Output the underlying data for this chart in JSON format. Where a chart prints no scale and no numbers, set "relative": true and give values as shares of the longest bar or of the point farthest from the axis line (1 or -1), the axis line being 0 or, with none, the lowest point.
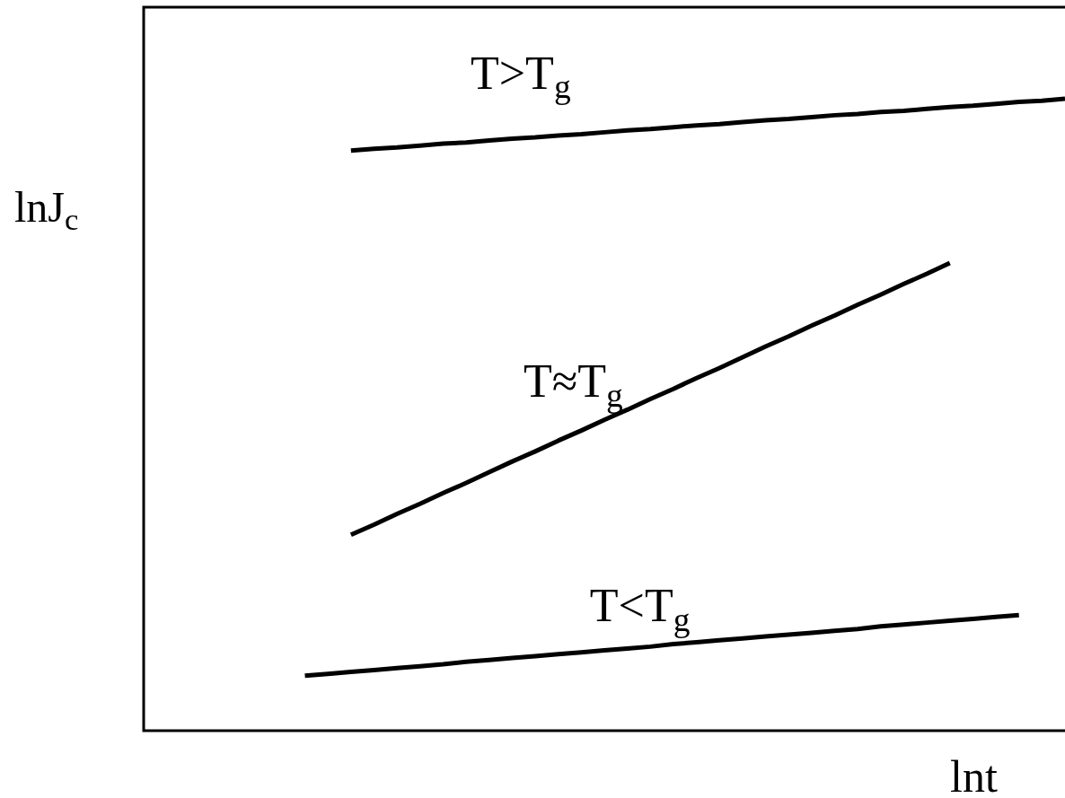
{
  "chart_data": {
    "type": "line",
    "xlabel": "lnt",
    "ylabel": "lnJ$_{c}$",
    "relative": true,
    "categories": [
      null,
      null,
      null,
      null,
      null,
      null,
      null,
      null,
      null,
      null,
      null,
      null,
      null,
      null,
      null,
      null,
      null,
      null,
      null,
      null,
      null,
      null,
      null,
      null,
      null,
      null,
      null,
      null,
      null,
      null,
      null,
      null,
      null,
      null,
      null,
      null,
      null,
      null,
      null,
      null,
      null
    ],
    "series": [
      {
        "name": "T>T$_{g}$",
        "color": "#000000",
        "values": [
          null,
          null,
          null,
          null,
          null,
          null,
          null,
          null,
          null,
          0.918,
          0.921,
          0.923,
          0.926,
          0.929,
          0.931,
          0.934,
          0.937,
          0.939,
          0.942,
          0.944,
          0.947,
          0.95,
          0.952,
          0.955,
          0.958,
          0.96,
          0.963,
          0.966,
          0.968,
          0.971,
          0.974,
          0.976,
          0.979,
          0.981,
          0.984,
          0.987,
          0.989,
          0.992,
          0.995,
          0.997,
          1
        ]
      },
      {
        "name": "T≈T$_{g}$",
        "color": "#000000",
        "values": [
          null,
          null,
          null,
          null,
          null,
          null,
          null,
          null,
          null,
          0.31,
          0.326,
          0.343,
          0.359,
          0.376,
          0.392,
          0.409,
          0.426,
          0.442,
          0.459,
          0.475,
          0.492,
          0.508,
          0.525,
          0.541,
          0.558,
          0.574,
          0.591,
          0.608,
          0.624,
          0.641,
          0.657,
          0.674,
          0.69,
          0.707,
          0.723,
          0.74,
          null,
          null,
          null,
          null,
          null
        ]
      },
      {
        "name": "T<T$_{g}$",
        "color": "#000000",
        "values": [
          null,
          null,
          null,
          null,
          null,
          null,
          null,
          0.087,
          0.09,
          0.093,
          0.096,
          0.099,
          0.102,
          0.105,
          0.109,
          0.112,
          0.115,
          0.118,
          0.121,
          0.124,
          0.127,
          0.13,
          0.133,
          0.137,
          0.14,
          0.143,
          0.146,
          0.149,
          0.152,
          0.155,
          0.158,
          0.161,
          0.165,
          0.168,
          0.171,
          0.174,
          0.177,
          0.18,
          0.183,
          null,
          null
        ]
      }
    ]
  }
}
